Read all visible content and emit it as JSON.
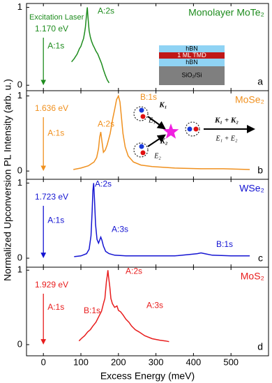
{
  "ylabel": "Normalized Upconversion PL Intensity (arb. u.)",
  "chart_data": [
    {
      "type": "line",
      "title": "Monolayer MoTe₂",
      "panel_label": "a",
      "laser_label": "Excitation Laser",
      "energy": "1.170 eV",
      "annotations": [
        "A:1s",
        "A:2s"
      ],
      "inset": [
        "hBN",
        "1 ML TMD",
        "hBN",
        "SiO₂/Si"
      ],
      "x": [
        75,
        82,
        90,
        96,
        100,
        104,
        107,
        110,
        112,
        114,
        116,
        117,
        118,
        120,
        122,
        125,
        128,
        132,
        136,
        140,
        145,
        150,
        155,
        160,
        165,
        170,
        175
      ],
      "series": [
        {
          "color": "#1e8c1e",
          "values": [
            0.3,
            0.34,
            0.4,
            0.47,
            0.5,
            0.56,
            0.6,
            0.68,
            0.75,
            0.85,
            0.95,
            1.0,
            0.93,
            0.8,
            0.7,
            0.62,
            0.57,
            0.52,
            0.48,
            0.44,
            0.4,
            0.34,
            0.28,
            0.2,
            0.13,
            0.07,
            0.03
          ]
        }
      ],
      "xlim": [
        -45,
        600
      ],
      "ylim": [
        -0.07,
        1.05
      ],
      "yticks": [
        0,
        1
      ]
    },
    {
      "type": "line",
      "title": "MoSe₂",
      "panel_label": "b",
      "energy": "1.636 eV",
      "annotations": [
        "A:1s",
        "A:2s",
        "B:1s"
      ],
      "inset": [
        "K₁",
        "E₁",
        "K₂",
        "E₂",
        "K₁ + K₂",
        "E₁ + E₂"
      ],
      "x": [
        80,
        100,
        120,
        135,
        142,
        147,
        150,
        153,
        156,
        160,
        165,
        170,
        178,
        185,
        190,
        195,
        200,
        204,
        208,
        212,
        218,
        226,
        240,
        260,
        290,
        350,
        420,
        480,
        550
      ],
      "series": [
        {
          "color": "#f0901e",
          "values": [
            0.02,
            0.04,
            0.07,
            0.12,
            0.18,
            0.3,
            0.45,
            0.52,
            0.4,
            0.25,
            0.28,
            0.35,
            0.5,
            0.7,
            0.82,
            0.95,
            1.0,
            0.92,
            0.72,
            0.5,
            0.32,
            0.2,
            0.12,
            0.08,
            0.06,
            0.04,
            0.03,
            0.03,
            0.02
          ]
        }
      ],
      "xlim": [
        -45,
        600
      ],
      "ylim": [
        -0.11,
        1.07
      ],
      "yticks": [
        0,
        1
      ]
    },
    {
      "type": "line",
      "title": "WSe₂",
      "panel_label": "c",
      "energy": "1.723 eV",
      "annotations": [
        "A:1s",
        "A:2s",
        "A:3s",
        "B:1s"
      ],
      "x": [
        82,
        100,
        115,
        122,
        127,
        130,
        132,
        134,
        136,
        139,
        143,
        147,
        150,
        153,
        156,
        160,
        166,
        175,
        190,
        220,
        280,
        350,
        390,
        410,
        420,
        430,
        450,
        500,
        550
      ],
      "series": [
        {
          "color": "#1414d2",
          "values": [
            0.02,
            0.03,
            0.06,
            0.12,
            0.3,
            0.62,
            0.9,
            1.0,
            0.8,
            0.45,
            0.25,
            0.2,
            0.24,
            0.28,
            0.24,
            0.16,
            0.09,
            0.06,
            0.04,
            0.03,
            0.03,
            0.03,
            0.05,
            0.06,
            0.07,
            0.06,
            0.04,
            0.03,
            0.03
          ]
        }
      ],
      "xlim": [
        -45,
        600
      ],
      "ylim": [
        -0.12,
        1.05
      ],
      "yticks": [
        0,
        1
      ]
    },
    {
      "type": "line",
      "title": "MoS₂",
      "panel_label": "d",
      "energy": "1.929 eV",
      "annotations": [
        "A:1s",
        "B:1s",
        "A:2s",
        "A:3s"
      ],
      "x": [
        95,
        103,
        110,
        118,
        125,
        132,
        140,
        148,
        155,
        160,
        164,
        168,
        170,
        172,
        174,
        177,
        180,
        184,
        190,
        196,
        200,
        206,
        212,
        220,
        228,
        235,
        245,
        255,
        270,
        290,
        310,
        325,
        335
      ],
      "series": [
        {
          "color": "#e81c1c",
          "values": [
            0.05,
            0.09,
            0.12,
            0.17,
            0.2,
            0.25,
            0.3,
            0.38,
            0.45,
            0.55,
            0.62,
            0.85,
            0.92,
            1.0,
            0.9,
            0.78,
            0.62,
            0.55,
            0.5,
            0.52,
            0.46,
            0.44,
            0.4,
            0.34,
            0.3,
            0.25,
            0.2,
            0.17,
            0.12,
            0.08,
            0.06,
            0.05,
            0.04
          ]
        }
      ],
      "xlim": [
        -45,
        600
      ],
      "ylim": [
        -0.15,
        1.04
      ],
      "yticks": [
        0,
        1
      ],
      "xticks": [
        0,
        100,
        200,
        300,
        400,
        500
      ],
      "xlabel": "Excess Energy (meV)"
    }
  ]
}
